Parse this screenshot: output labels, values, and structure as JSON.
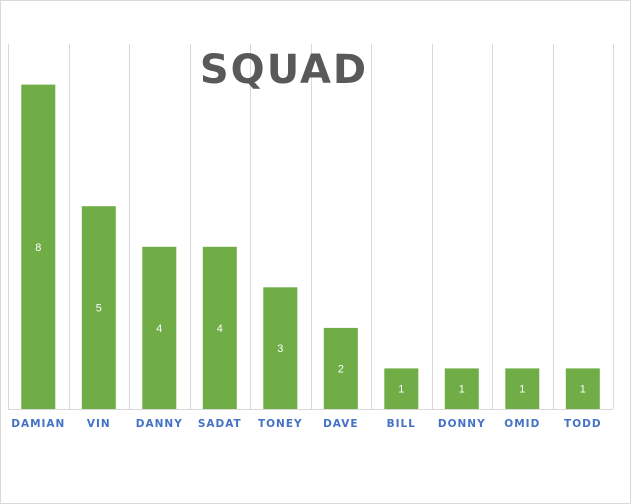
{
  "chart_data": {
    "type": "bar",
    "title": "SQUAD",
    "categories": [
      "DAMIAN",
      "VIN",
      "DANNY",
      "SADAT",
      "TONEY",
      "DAVE",
      "BILL",
      "DONNY",
      "OMID",
      "TODD"
    ],
    "values": [
      8,
      5,
      4,
      4,
      3,
      2,
      1,
      1,
      1,
      1
    ],
    "data_labels": [
      "8",
      "5",
      "4",
      "4",
      "3",
      "2",
      "1",
      "1",
      "1",
      "1"
    ],
    "ylim": [
      0,
      9
    ],
    "grid": "vertical",
    "legend": "none",
    "colors": {
      "bar": "#70ad47",
      "label_text": "#ffffff",
      "tick_text": "#4472c4",
      "title_text": "#595959",
      "gridline": "#d9d9d9"
    }
  }
}
